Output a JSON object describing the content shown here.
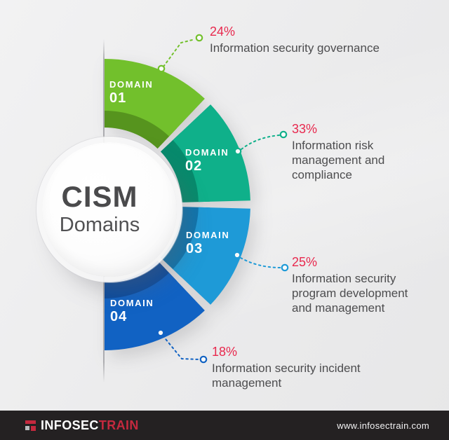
{
  "center": {
    "title": "CISM",
    "subtitle": "Domains"
  },
  "ui": {
    "percent_color": "#e8294e",
    "text_color": "#4d4d4f",
    "domain_text_color": "#ffffff",
    "background_color": "#ebebec"
  },
  "chart_data": {
    "type": "pie",
    "variant": "half-donut",
    "title": "CISM Domains",
    "unit": "%",
    "legend_position": "callouts-right",
    "segments": [
      {
        "domain_label": "DOMAIN",
        "domain_number": "01",
        "value": 24,
        "percent": "24%",
        "description": "Information security governance",
        "color": "#72c02c",
        "shadow_color": "#56941e"
      },
      {
        "domain_label": "DOMAIN",
        "domain_number": "02",
        "value": 33,
        "percent": "33%",
        "description": "Information risk\nmanagement and\ncompliance",
        "color": "#0fb08a",
        "shadow_color": "#078a6c"
      },
      {
        "domain_label": "DOMAIN",
        "domain_number": "03",
        "value": 25,
        "percent": "25%",
        "description": "Information security\nprogram development\nand management",
        "color": "#1e9ad7",
        "shadow_color": "#0e74ad"
      },
      {
        "domain_label": "DOMAIN",
        "domain_number": "04",
        "value": 18,
        "percent": "18%",
        "description": "Information security incident\nmanagement",
        "color": "#1162c3",
        "shadow_color": "#0b4b9d"
      }
    ]
  },
  "footer": {
    "logo_text_primary": "INFOSEC",
    "logo_text_accent": "TRAIN",
    "website": "www.infosectrain.com",
    "bar_color": "#242122",
    "accent_color": "#c5293e"
  }
}
